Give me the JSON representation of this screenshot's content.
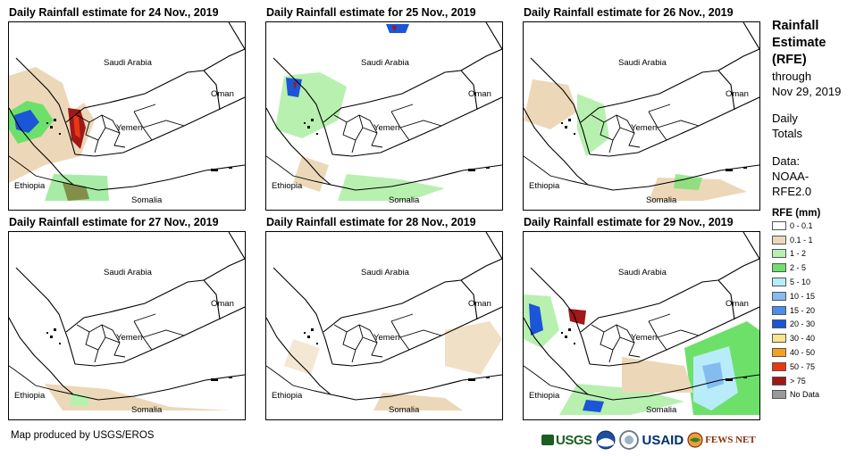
{
  "panels": [
    {
      "title": "Daily Rainfall estimate for 24 Nov., 2019"
    },
    {
      "title": "Daily Rainfall estimate for 25 Nov., 2019"
    },
    {
      "title": "Daily Rainfall estimate for 26 Nov., 2019"
    },
    {
      "title": "Daily Rainfall estimate for 27 Nov., 2019"
    },
    {
      "title": "Daily Rainfall estimate for 28 Nov., 2019"
    },
    {
      "title": "Daily Rainfall estimate for 29 Nov., 2019"
    }
  ],
  "map_labels": {
    "saudi": "Saudi Arabia",
    "oman": "Oman",
    "yemen": "Yemen",
    "ethiopia": "Ethiopia",
    "somalia": "Somalia"
  },
  "legend": {
    "title_line1": "Rainfall",
    "title_line2": "Estimate",
    "title_line3": "(RFE)",
    "through": "through",
    "date": "Nov 29, 2019",
    "daily1": "Daily",
    "daily2": "Totals",
    "data1": "Data:",
    "data2": "NOAA-",
    "data3": "RFE2.0",
    "unit_title": "RFE (mm)",
    "items": [
      {
        "label": "0 - 0.1",
        "color": "#ffffff"
      },
      {
        "label": "0.1 - 1",
        "color": "#ecd8b8"
      },
      {
        "label": "1 - 2",
        "color": "#b8f0b0"
      },
      {
        "label": "2 - 5",
        "color": "#6de06a"
      },
      {
        "label": "5 - 10",
        "color": "#b8ecf8"
      },
      {
        "label": "10 - 15",
        "color": "#84bcf0"
      },
      {
        "label": "15 - 20",
        "color": "#4a8ee8"
      },
      {
        "label": "20 - 30",
        "color": "#1b55d8"
      },
      {
        "label": "30 - 40",
        "color": "#f8e48c"
      },
      {
        "label": "40 - 50",
        "color": "#f2a21e"
      },
      {
        "label": "50 - 75",
        "color": "#e83812"
      },
      {
        "label": "> 75",
        "color": "#a01818"
      },
      {
        "label": "No Data",
        "color": "#9a9a9a"
      }
    ]
  },
  "credit": "Map produced by USGS/EROS",
  "logos": {
    "usgs": "USGS",
    "usaid": "USAID",
    "fews": "FEWS NET"
  }
}
